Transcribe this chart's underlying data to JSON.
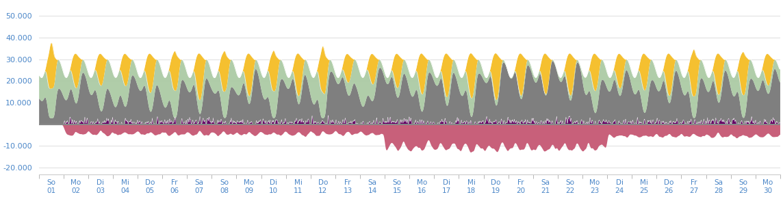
{
  "ylim": [
    -23000,
    56000
  ],
  "yticks": [
    -20000,
    -10000,
    0,
    10000,
    20000,
    30000,
    40000,
    50000
  ],
  "ytick_labels": [
    "-20.000",
    "-10.000",
    "",
    "10.000",
    "20.000",
    "30.000",
    "40.000",
    "50.000"
  ],
  "days": 30,
  "hours_per_day": 96,
  "day_names": [
    "So",
    "Mo",
    "Di",
    "Mi",
    "Do",
    "Fr",
    "Sa",
    "So",
    "Mo",
    "Di",
    "Mi",
    "Do",
    "Fr",
    "Sa",
    "So",
    "Mo",
    "Di",
    "Mi",
    "Do",
    "Fr",
    "Sa",
    "So",
    "Mo",
    "Di",
    "Mi",
    "Do",
    "Fr",
    "Sa",
    "So",
    "Mo"
  ],
  "day_nums": [
    "01",
    "02",
    "03",
    "04",
    "05",
    "06",
    "07",
    "08",
    "09",
    "10",
    "11",
    "12",
    "13",
    "14",
    "15",
    "16",
    "17",
    "18",
    "19",
    "20",
    "21",
    "22",
    "23",
    "24",
    "25",
    "26",
    "27",
    "28",
    "29",
    "30"
  ],
  "color_traditional": "#7f7f7f",
  "color_wind_fill": "#a8c8a0",
  "color_solar": "#f5c030",
  "color_negative": "#c8607a",
  "color_purple": "#660066",
  "color_zero_line": "#888888",
  "color_background": "#ffffff",
  "color_axis_text": "#4a86c8",
  "color_grid": "#dddddd",
  "figsize": [
    11.44,
    2.88
  ],
  "dpi": 100
}
